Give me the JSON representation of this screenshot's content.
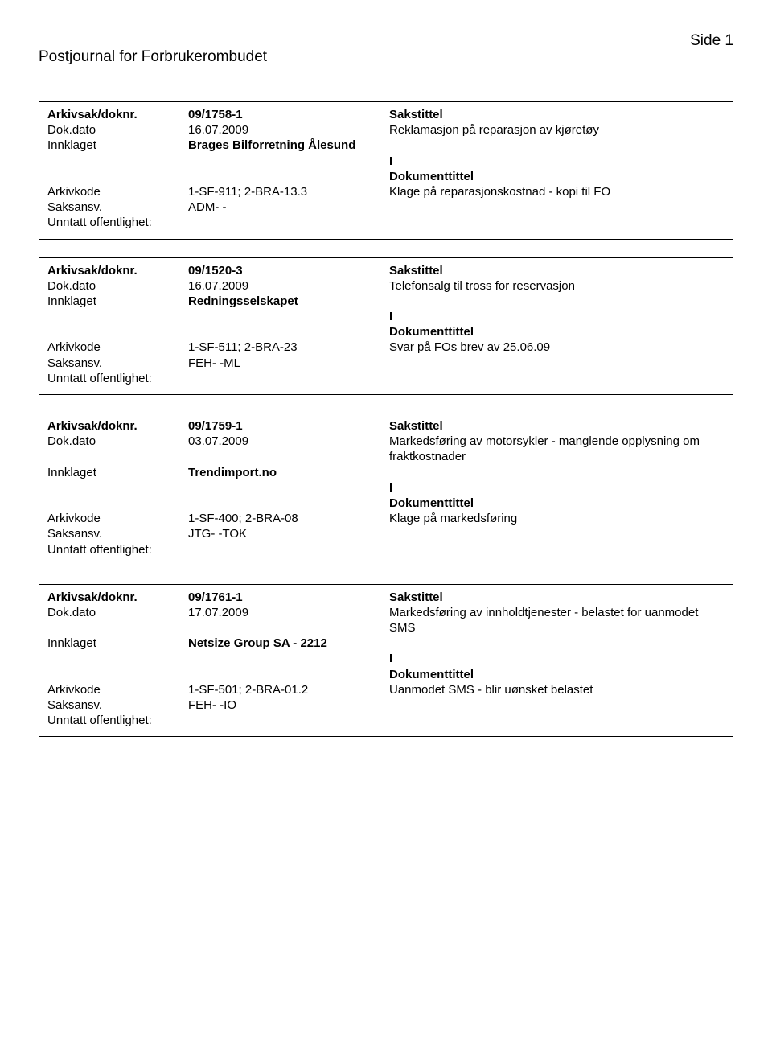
{
  "page": {
    "title": "Postjournal for Forbrukerombudet",
    "side_label": "Side 1"
  },
  "labels": {
    "arkivsak": "Arkivsak/doknr.",
    "dokdato": "Dok.dato",
    "innklaget": "Innklaget",
    "arkivkode": "Arkivkode",
    "saksansv": "Saksansv.",
    "unntatt": "Unntatt offentlighet:",
    "sakstittel": "Sakstittel",
    "dokumenttittel": "Dokumenttittel"
  },
  "entries": [
    {
      "arkivsak": "09/1758-1",
      "dokdato": "16.07.2009",
      "sakstittel": "Reklamasjon på reparasjon av kjøretøy",
      "innklaget": "Brages Bilforretning Ålesund",
      "io": "I",
      "arkivkode": "1-SF-911; 2-BRA-13.3",
      "doktittel": "Klage på reparasjonskostnad - kopi til FO",
      "saksansv": "ADM- -",
      "unntatt": ""
    },
    {
      "arkivsak": "09/1520-3",
      "dokdato": "16.07.2009",
      "sakstittel": "Telefonsalg til tross for reservasjon",
      "innklaget": "Redningsselskapet",
      "io": "I",
      "arkivkode": "1-SF-511; 2-BRA-23",
      "doktittel": "Svar på FOs brev av 25.06.09",
      "saksansv": "FEH- -ML",
      "unntatt": ""
    },
    {
      "arkivsak": "09/1759-1",
      "dokdato": "03.07.2009",
      "sakstittel": "Markedsføring av motorsykler - manglende opplysning om fraktkostnader",
      "innklaget": "Trendimport.no",
      "io": "I",
      "arkivkode": "1-SF-400; 2-BRA-08",
      "doktittel": "Klage på markedsføring",
      "saksansv": "JTG- -TOK",
      "unntatt": ""
    },
    {
      "arkivsak": "09/1761-1",
      "dokdato": "17.07.2009",
      "sakstittel": "Markedsføring av innholdtjenester - belastet for uanmodet SMS",
      "innklaget": "Netsize Group SA  - 2212",
      "io": "I",
      "arkivkode": "1-SF-501; 2-BRA-01.2",
      "doktittel": "Uanmodet SMS - blir uønsket belastet",
      "saksansv": "FEH- -IO",
      "unntatt": ""
    }
  ]
}
